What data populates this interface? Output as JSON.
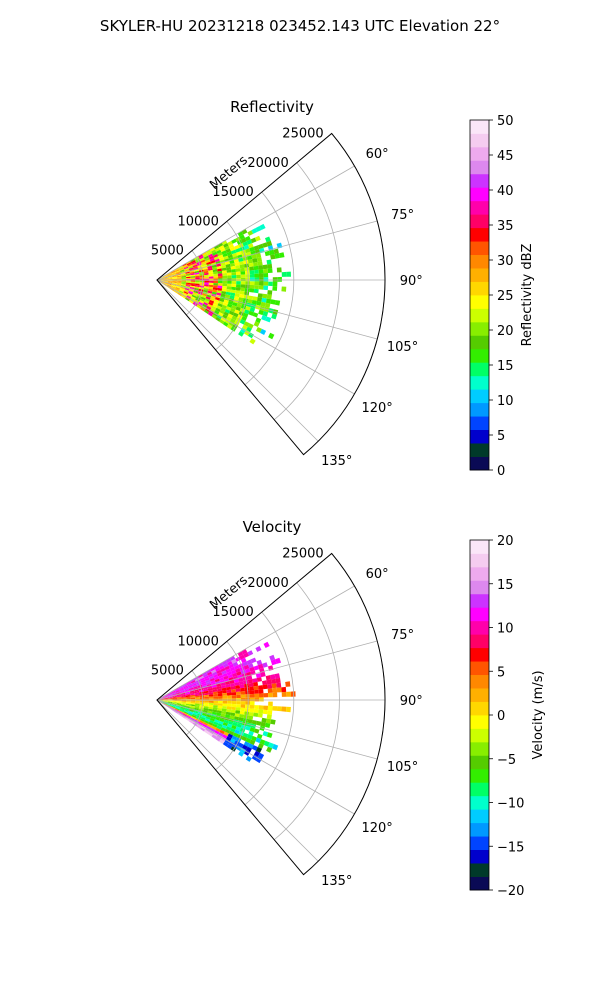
{
  "figure_title": "SKYLER-HU  20231218  023452.143 UTC Elevation 22°",
  "chart_data": [
    {
      "type": "heatmap",
      "projection": "polar-sector",
      "title": "Reflectivity",
      "radial_label": "Meters",
      "radial_ticks": [
        5000,
        10000,
        15000,
        20000,
        25000
      ],
      "radial_tick_labels": [
        "5000",
        "10000",
        "15000",
        "20000",
        "25000"
      ],
      "r_max": 25000,
      "azimuth_range_deg": [
        50,
        140
      ],
      "azimuth_ticks_deg": [
        60,
        75,
        90,
        105,
        120,
        135
      ],
      "azimuth_tick_labels": [
        "60°",
        "75°",
        "90°",
        "105°",
        "120°",
        "135°"
      ],
      "grid": true,
      "colorbar": {
        "label": "Reflectivity dBZ",
        "min": 0,
        "max": 50,
        "ticks": [
          0,
          5,
          10,
          15,
          20,
          25,
          30,
          35,
          40,
          45,
          50
        ],
        "tick_labels": [
          "0",
          "5",
          "10",
          "15",
          "20",
          "25",
          "30",
          "35",
          "40",
          "45",
          "50"
        ]
      },
      "echo_extent": {
        "azimuth_deg": [
          60,
          122
        ],
        "range_m": [
          0,
          14000
        ],
        "high_values_dbz": [
          30,
          40
        ],
        "high_values_range_m": [
          3000,
          7000
        ]
      },
      "colors": [
        "#0a0a55",
        "#003a2a",
        "#0000cc",
        "#0044ff",
        "#0099ff",
        "#00ccff",
        "#00ffcc",
        "#00ff66",
        "#33ee00",
        "#55cc00",
        "#88ee00",
        "#ccff00",
        "#ffff00",
        "#ffd700",
        "#ffb000",
        "#ff8800",
        "#ff5500",
        "#ff0000",
        "#ff0066",
        "#ff00aa",
        "#ff00ff",
        "#cc33ff",
        "#dd88ee",
        "#eeaaee",
        "#f5ccf0",
        "#fbe6f8"
      ]
    },
    {
      "type": "heatmap",
      "projection": "polar-sector",
      "title": "Velocity",
      "radial_label": "Meters",
      "radial_ticks": [
        5000,
        10000,
        15000,
        20000,
        25000
      ],
      "radial_tick_labels": [
        "5000",
        "10000",
        "15000",
        "20000",
        "25000"
      ],
      "r_max": 25000,
      "azimuth_range_deg": [
        50,
        140
      ],
      "azimuth_ticks_deg": [
        60,
        75,
        90,
        105,
        120,
        135
      ],
      "azimuth_tick_labels": [
        "60°",
        "75°",
        "90°",
        "105°",
        "120°",
        "135°"
      ],
      "grid": true,
      "colorbar": {
        "label": "Velocity (m/s)",
        "min": -20,
        "max": 20,
        "ticks": [
          -20,
          -15,
          -10,
          -5,
          0,
          5,
          10,
          15,
          20
        ],
        "tick_labels": [
          "−20",
          "−15",
          "−10",
          "−5",
          "0",
          "5",
          "10",
          "15",
          "20"
        ]
      },
      "echo_extent": {
        "azimuth_deg": [
          60,
          122
        ],
        "range_m": [
          0,
          14000
        ],
        "velocity_pattern": [
          {
            "azimuth_deg": 68,
            "value_ms": 12
          },
          {
            "azimuth_deg": 78,
            "value_ms": 9
          },
          {
            "azimuth_deg": 90,
            "value_ms": 2
          },
          {
            "azimuth_deg": 102,
            "value_ms": -6
          },
          {
            "azimuth_deg": 112,
            "value_ms": -10
          },
          {
            "azimuth_deg": 118,
            "value_ms": 16
          }
        ]
      },
      "colors": [
        "#0a0a55",
        "#003a2a",
        "#0000cc",
        "#0044ff",
        "#0099ff",
        "#00ccff",
        "#00ffcc",
        "#00ff66",
        "#33ee00",
        "#55cc00",
        "#88ee00",
        "#ccff00",
        "#ffff00",
        "#ffd700",
        "#ffb000",
        "#ff8800",
        "#ff5500",
        "#ff0000",
        "#ff0066",
        "#ff00aa",
        "#ff00ff",
        "#cc33ff",
        "#dd88ee",
        "#eeaaee",
        "#f5ccf0",
        "#fbe6f8"
      ]
    }
  ]
}
